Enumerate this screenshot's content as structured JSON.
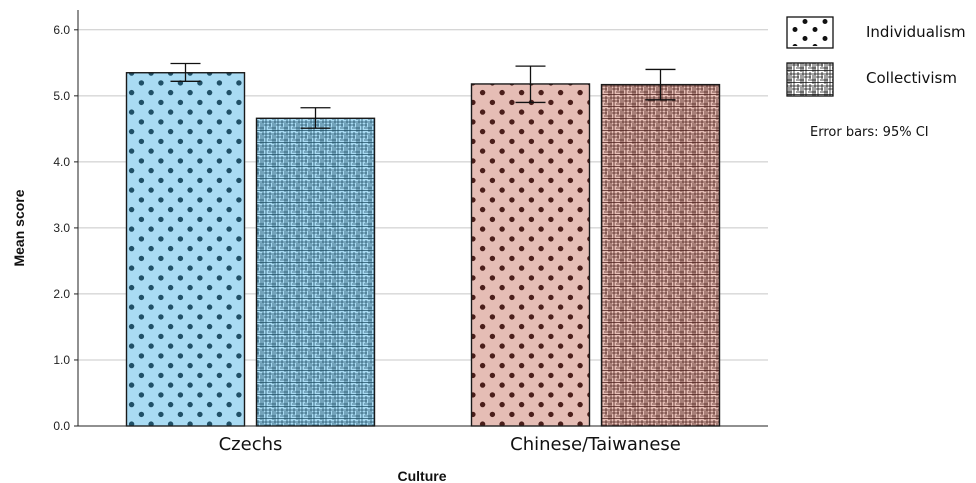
{
  "chart_data": {
    "type": "bar",
    "xlabel": "Culture",
    "ylabel": "Mean score",
    "ylim": [
      0,
      6.3
    ],
    "yticks": [
      "0.0",
      "1.0",
      "2.0",
      "3.0",
      "4.0",
      "5.0",
      "6.0"
    ],
    "grid": true,
    "legend_position": "top-right",
    "categories": [
      "Czechs",
      "Chinese/Taiwanese"
    ],
    "category_colors": [
      "#a9dbf3",
      "#e5bdb5"
    ],
    "category_pattern_colors": [
      "#1f4f66",
      "#4a1e1a"
    ],
    "series": [
      {
        "name": "Individualism",
        "pattern": "dots",
        "values": [
          5.35,
          5.18
        ],
        "ci_low": [
          5.22,
          4.9
        ],
        "ci_high": [
          5.49,
          5.45
        ]
      },
      {
        "name": "Collectivism",
        "pattern": "crosshatch",
        "values": [
          4.66,
          5.17
        ],
        "ci_low": [
          4.51,
          4.94
        ],
        "ci_high": [
          4.82,
          5.4
        ]
      }
    ],
    "note": "Error bars: 95% CI"
  }
}
